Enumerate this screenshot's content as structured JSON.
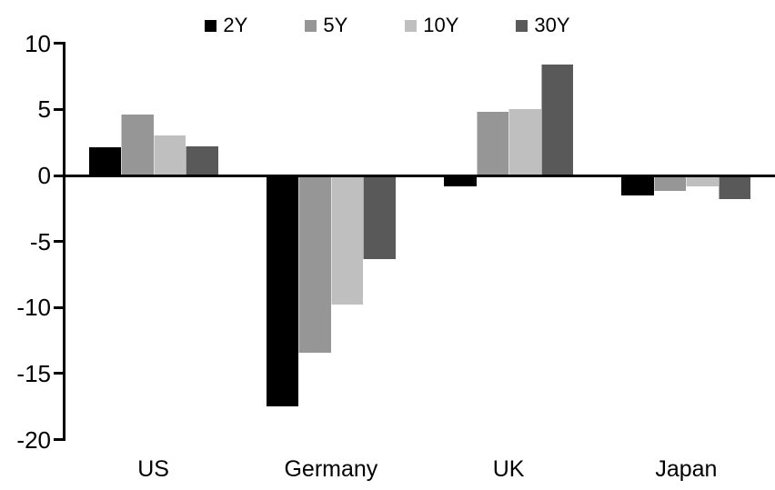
{
  "chart_data": {
    "type": "bar",
    "title": "",
    "xlabel": "",
    "ylabel": "",
    "categories": [
      "US",
      "Germany",
      "UK",
      "Japan"
    ],
    "series": [
      {
        "name": "2Y",
        "color": "#000000",
        "values": [
          2.1,
          -17.5,
          -0.8,
          -1.5
        ]
      },
      {
        "name": "5Y",
        "color": "#969696",
        "values": [
          4.6,
          -13.4,
          4.8,
          -1.2
        ]
      },
      {
        "name": "10Y",
        "color": "#BFBFBF",
        "values": [
          3.0,
          -9.8,
          5.0,
          -0.8
        ]
      },
      {
        "name": "30Y",
        "color": "#595959",
        "values": [
          2.2,
          -6.3,
          8.4,
          -1.8
        ]
      }
    ],
    "y_ticks": [
      10,
      5,
      0,
      -5,
      -10,
      -15,
      -20
    ],
    "ylim": [
      -20,
      10
    ],
    "grid": false,
    "legend_position": "top-center",
    "axis_color": "#000000",
    "background_color": "#FFFFFF"
  }
}
